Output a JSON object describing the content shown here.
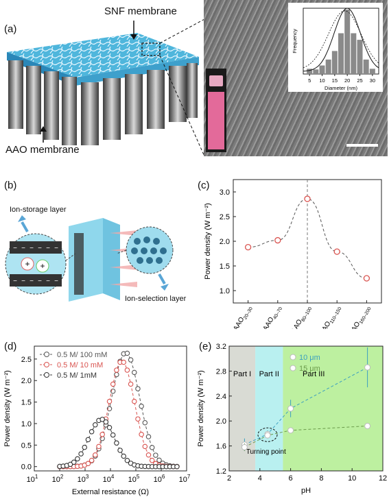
{
  "panel_a": {
    "label": "(a)",
    "snf_label": "SNF membrane",
    "aao_label": "AAO membrane",
    "inset": {
      "type": "bar",
      "ylabel": "Frequency",
      "xlabel": "Diameter (nm)",
      "ticks": [
        "5",
        "10",
        "15",
        "20",
        "25",
        "30"
      ],
      "bars": [
        {
          "x": 5,
          "v": 0.08
        },
        {
          "x": 7.5,
          "v": 0.07
        },
        {
          "x": 10,
          "v": 0.13
        },
        {
          "x": 12.5,
          "v": 0.22
        },
        {
          "x": 15,
          "v": 0.35
        },
        {
          "x": 17.5,
          "v": 0.62
        },
        {
          "x": 20,
          "v": 0.98
        },
        {
          "x": 22.5,
          "v": 0.62
        },
        {
          "x": 25,
          "v": 0.52
        },
        {
          "x": 27.5,
          "v": 0.22
        },
        {
          "x": 30,
          "v": 0.08
        }
      ],
      "bar_color": "#8a8a8a"
    }
  },
  "panel_b": {
    "label": "(b)",
    "ion_storage": "Ion-storage layer",
    "ion_selection": "Ion-selection layer"
  },
  "panel_c": {
    "label": "(c)",
    "chart_data": {
      "type": "line",
      "ylabel": "Power density (W m⁻²)",
      "categories": [
        "AAO",
        "AAO",
        "AAO",
        "AAO",
        "AAO"
      ],
      "category_subscripts": [
        "20–30",
        "40–70",
        "80–100",
        "110–150",
        "160–200"
      ],
      "values": [
        1.88,
        2.02,
        2.86,
        1.79,
        1.25
      ],
      "ylim": [
        0.75,
        3.25
      ],
      "yticks": [
        "1.0",
        "1.5",
        "2.0",
        "2.5",
        "3.0"
      ],
      "yticks_values": [
        1.0,
        1.5,
        2.0,
        2.5,
        3.0
      ],
      "marker_color": "#d9534f"
    }
  },
  "panel_d": {
    "label": "(d)",
    "chart_data": {
      "type": "scatter",
      "xlabel": "External resistance (Ω)",
      "ylabel": "Power density (W m⁻²)",
      "x_log": true,
      "xlim_exp": [
        1,
        7
      ],
      "ylim": [
        -0.1,
        2.8
      ],
      "yticks": [
        "0.0",
        "0.5",
        "1.0",
        "1.5",
        "2.0",
        "2.5"
      ],
      "yticks_values": [
        0,
        0.5,
        1.0,
        1.5,
        2.0,
        2.5
      ],
      "xticks_exp": [
        1,
        2,
        3,
        4,
        5,
        6,
        7
      ],
      "xtick_base": "10",
      "series": [
        {
          "name": "0.5 M/ 100 mM",
          "color": "#555555",
          "peak": 2.65,
          "center": 4.6,
          "width": 0.55
        },
        {
          "name": "0.5 M/ 10 mM",
          "color": "#d9534f",
          "peak": 2.45,
          "center": 4.45,
          "width": 0.5
        },
        {
          "name": "0.5 M/ 1mM",
          "color": "#333333",
          "peak": 1.1,
          "center": 3.65,
          "width": 0.5
        }
      ]
    }
  },
  "panel_e": {
    "label": "(e)",
    "chart_data": {
      "type": "scatter",
      "xlabel": "pH",
      "ylabel": "Power density (W m⁻²)",
      "xlim": [
        2,
        12
      ],
      "ylim": [
        1.2,
        3.2
      ],
      "xticks": [
        "2",
        "4",
        "6",
        "8",
        "10",
        "12"
      ],
      "xticks_values": [
        2,
        4,
        6,
        8,
        10,
        12
      ],
      "yticks": [
        "1.2",
        "1.6",
        "2.0",
        "2.4",
        "2.8",
        "3.2"
      ],
      "yticks_values": [
        1.2,
        1.6,
        2.0,
        2.4,
        2.8,
        3.2
      ],
      "regions": [
        {
          "name": "Part I",
          "from": 2,
          "to": 3.7,
          "color": "#d9dbd4"
        },
        {
          "name": "Part II",
          "from": 3.7,
          "to": 5.5,
          "color": "#b9f0f0"
        },
        {
          "name": "Part III",
          "from": 5.5,
          "to": 12,
          "color": "#bdf0a0"
        }
      ],
      "series": [
        {
          "name": "10 μm",
          "color": "#3a9fbf",
          "x": [
            3,
            4.5,
            6,
            11
          ],
          "y": [
            1.62,
            1.79,
            2.2,
            2.86
          ],
          "err": [
            0.1,
            0.06,
            0.14,
            0.32
          ]
        },
        {
          "name": "15 μm",
          "color": "#6a9a4a",
          "x": [
            3,
            4.5,
            6,
            11
          ],
          "y": [
            1.58,
            1.77,
            1.85,
            1.92
          ],
          "err": [
            0.06,
            0.05,
            0.03,
            0.03
          ]
        }
      ],
      "annotation": "Turning point"
    }
  }
}
